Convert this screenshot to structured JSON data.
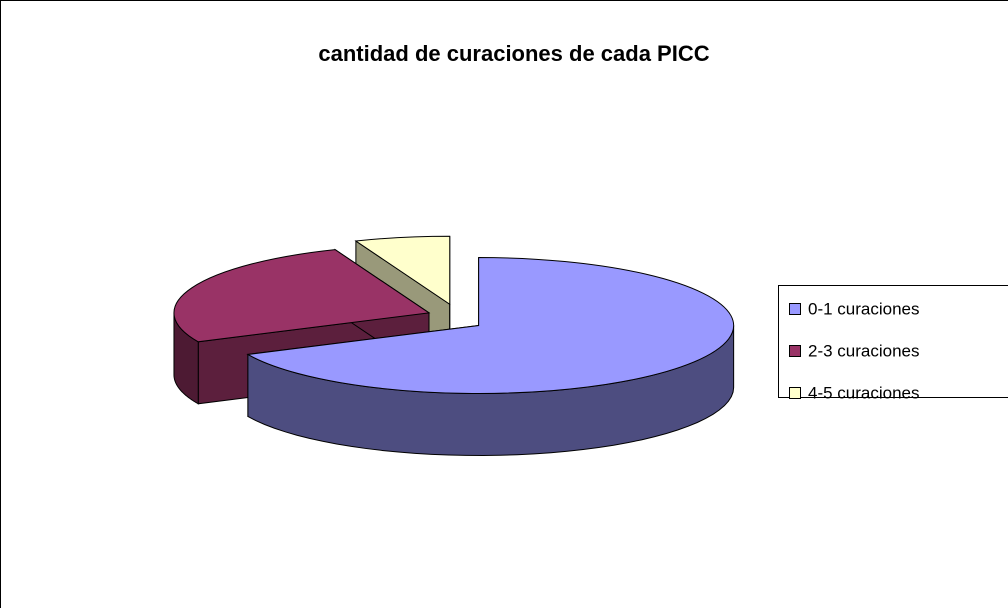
{
  "chart_data": {
    "type": "pie",
    "title": "cantidad de curaciones de cada PICC",
    "categories": [
      "0-1 curaciones",
      "2-3 curaciones",
      "4-5 curaciones"
    ],
    "values": [
      68,
      26,
      6
    ],
    "colors": [
      "#9999ff",
      "#993366",
      "#ffffcc"
    ],
    "legend": "right"
  }
}
